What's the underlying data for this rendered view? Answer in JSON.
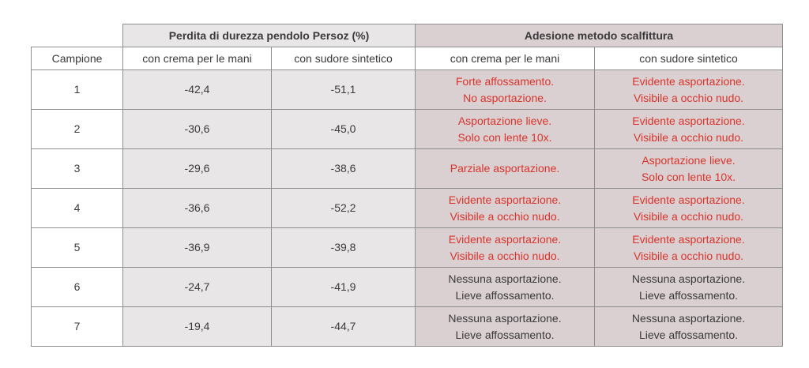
{
  "header": {
    "group1": "Perdita di durezza pendolo Persoz (%)",
    "group2": "Adesione metodo scalfittura",
    "col_sample": "Campione",
    "sub1": "con crema per le  mani",
    "sub2": "con sudore sintetico",
    "sub3": "con crema per le  mani",
    "sub4": "con sudore sintetico"
  },
  "rows": [
    {
      "id": "1",
      "v1": "-42,4",
      "v2": "-51,1",
      "a1": [
        "Forte affossamento.",
        "No asportazione."
      ],
      "a2": [
        "Evidente asportazione.",
        "Visibile a occhio nudo."
      ]
    },
    {
      "id": "2",
      "v1": "-30,6",
      "v2": "-45,0",
      "a1": [
        "Asportazione lieve.",
        "Solo con lente 10x."
      ],
      "a2": [
        "Evidente asportazione.",
        "Visibile a occhio nudo."
      ]
    },
    {
      "id": "3",
      "v1": "-29,6",
      "v2": "-38,6",
      "a1": [
        "Parziale asportazione."
      ],
      "a2": [
        "Asportazione lieve.",
        "Solo con lente 10x."
      ]
    },
    {
      "id": "4",
      "v1": "-36,6",
      "v2": "-52,2",
      "a1": [
        "Evidente asportazione.",
        "Visibile a occhio nudo."
      ],
      "a2": [
        "Evidente asportazione.",
        "Visibile a occhio nudo."
      ]
    },
    {
      "id": "5",
      "v1": "-36,9",
      "v2": "-39,8",
      "a1": [
        "Evidente asportazione.",
        "Visibile a occhio nudo."
      ],
      "a2": [
        "Evidente asportazione.",
        "Visibile a occhio nudo."
      ]
    },
    {
      "id": "6",
      "v1": "-24,7",
      "v2": "-41,9",
      "a1": [
        "Nessuna asportazione.",
        "Lieve affossamento."
      ],
      "a2": [
        "Nessuna asportazione.",
        "Lieve affossamento."
      ]
    },
    {
      "id": "7",
      "v1": "-19,4",
      "v2": "-44,7",
      "a1": [
        "Nessuna asportazione.",
        "Lieve affossamento."
      ],
      "a2": [
        "Nessuna asportazione.",
        "Lieve affossamento."
      ]
    }
  ],
  "colors": {
    "negative_result": "#d9342b",
    "neutral_result": "#3a3a3a",
    "persoz_header_bg": "#e9e6e7",
    "adhesion_header_bg": "#dacfd1"
  }
}
